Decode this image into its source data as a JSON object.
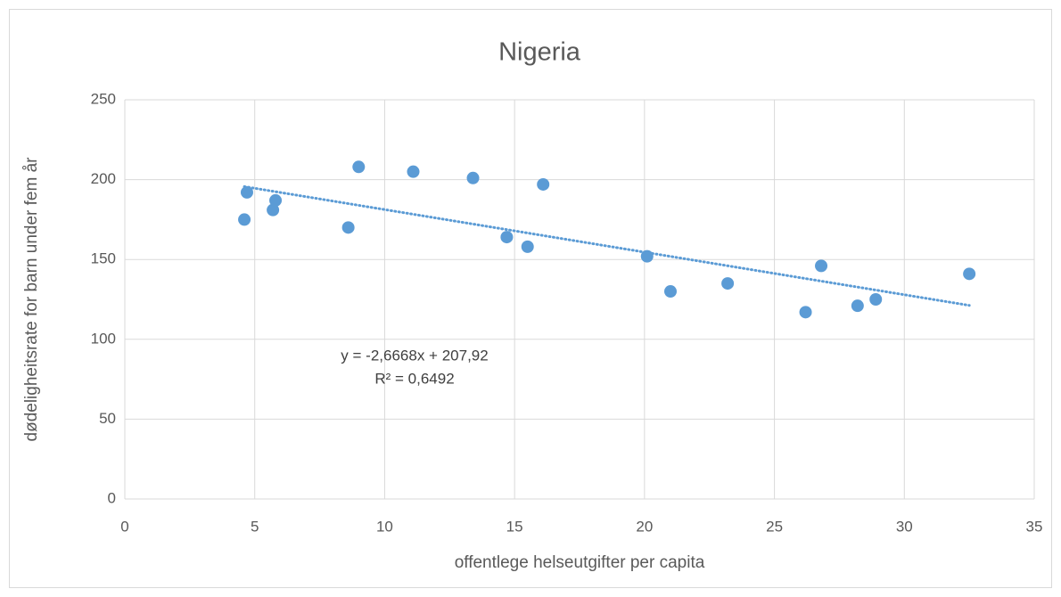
{
  "chart_data": {
    "type": "scatter",
    "title": "Nigeria",
    "x_label": "offentlege helseutgifter per capita",
    "y_label": "dødeligheitsrate for barn under fem år",
    "series": [
      {
        "name": "Nigeria",
        "color": "#5b9bd5",
        "x": [
          4.6,
          4.7,
          5.7,
          5.8,
          8.6,
          9.0,
          11.1,
          13.4,
          14.7,
          15.5,
          16.1,
          20.1,
          21.0,
          23.2,
          26.2,
          26.8,
          28.2,
          28.9,
          32.5
        ],
        "values": [
          175,
          192,
          181,
          187,
          170,
          208,
          205,
          201,
          164,
          158,
          197,
          152,
          130,
          135,
          117,
          146,
          121,
          125,
          141
        ]
      }
    ],
    "trendline": {
      "slope": -2.6668,
      "intercept": 207.92,
      "color": "#5b9bd5",
      "equation": "y = -2,6668x + 207,92",
      "r2": "R² = 0,6492"
    },
    "xlim": [
      0,
      35
    ],
    "xticks": [
      0,
      5,
      10,
      15,
      20,
      25,
      30,
      35
    ],
    "ylim": [
      0,
      250
    ],
    "yticks": [
      0,
      50,
      100,
      150,
      200,
      250
    ],
    "grid": true
  }
}
